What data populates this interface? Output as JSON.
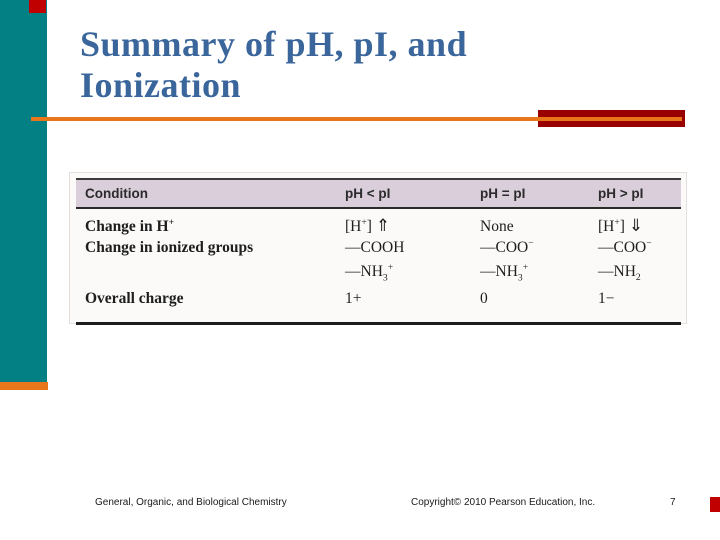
{
  "slide": {
    "title": {
      "line1": "Summary of pH, pI, and",
      "line2": "Ionization"
    }
  },
  "table": {
    "headers": [
      "Condition",
      "pH < pI",
      "pH = pI",
      "pH > pI"
    ],
    "rows": [
      {
        "label": "Change in H^{+}",
        "cells": [
          "[H^{+}] ⇑",
          "None",
          "[H^{+}] ⇓"
        ]
      },
      {
        "label": "Change in ionized groups",
        "cells": [
          "—COOH",
          "—COO^{−}",
          "—COO^{−}"
        ]
      },
      {
        "label": "",
        "cells": [
          "—NH_{3}^{+}",
          "—NH_{3}^{+}",
          "—NH_{2}"
        ]
      },
      {
        "label": "Overall charge",
        "cells": [
          "1+",
          "0",
          "1−"
        ]
      }
    ]
  },
  "footer": {
    "book_title": "General, Organic, and Biological Chemistry",
    "copyright": "Copyright© 2010 Pearson Education, Inc.",
    "page_number": "7"
  },
  "colors": {
    "teal_bar": "#028083",
    "orange_rule": "#e8761a",
    "maroon_bar": "#990100",
    "accent_red": "#c00000",
    "title_blue": "#3a669b",
    "table_header_bg": "#d9ceda"
  }
}
